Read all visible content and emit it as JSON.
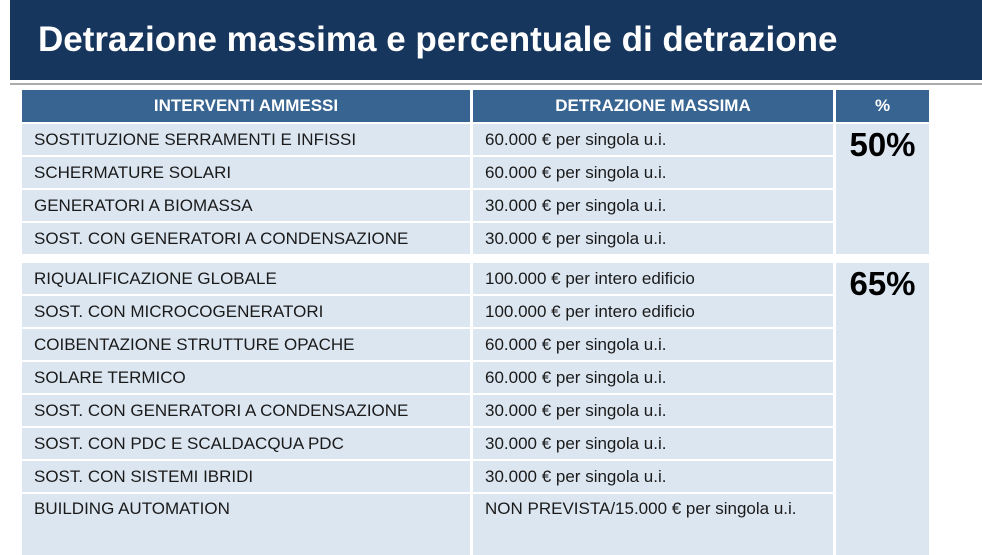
{
  "title": "Detrazione massima e percentuale di detrazione",
  "colors": {
    "title_band": "#17365D",
    "table_header_bg": "#386491",
    "row_bg": "#DCE6F1",
    "divider": "#FFFFFF",
    "rule": "#ABABAB"
  },
  "table": {
    "headers": [
      "INTERVENTI AMMESSI",
      "DETRAZIONE MASSIMA",
      "%"
    ],
    "groups": [
      {
        "percent": "50%",
        "rows": [
          {
            "intervento": "SOSTITUZIONE SERRAMENTI E INFISSI",
            "detrazione": "60.000 € per singola u.i."
          },
          {
            "intervento": "SCHERMATURE SOLARI",
            "detrazione": "60.000 € per singola u.i."
          },
          {
            "intervento": "GENERATORI A BIOMASSA",
            "detrazione": "30.000 € per singola u.i."
          },
          {
            "intervento": "SOST. CON GENERATORI A CONDENSAZIONE",
            "detrazione": "30.000 € per singola u.i."
          }
        ]
      },
      {
        "percent": "65%",
        "rows": [
          {
            "intervento": "RIQUALIFICAZIONE GLOBALE",
            "detrazione": "100.000 € per intero edificio"
          },
          {
            "intervento": "SOST. CON MICROCOGENERATORI",
            "detrazione": "100.000 € per intero edificio"
          },
          {
            "intervento": "COIBENTAZIONE STRUTTURE OPACHE",
            "detrazione": "60.000 € per singola u.i."
          },
          {
            "intervento": "SOLARE TERMICO",
            "detrazione": "60.000 € per singola u.i."
          },
          {
            "intervento": "SOST. CON GENERATORI A CONDENSAZIONE",
            "detrazione": "30.000 € per singola u.i."
          },
          {
            "intervento": "SOST. CON PDC E SCALDACQUA PDC",
            "detrazione": "30.000 € per singola u.i."
          },
          {
            "intervento": "SOST. CON SISTEMI IBRIDI",
            "detrazione": "30.000 € per singola u.i."
          },
          {
            "intervento": "BUILDING AUTOMATION",
            "detrazione": "NON PREVISTA/15.000 € per singola u.i."
          }
        ]
      }
    ]
  }
}
